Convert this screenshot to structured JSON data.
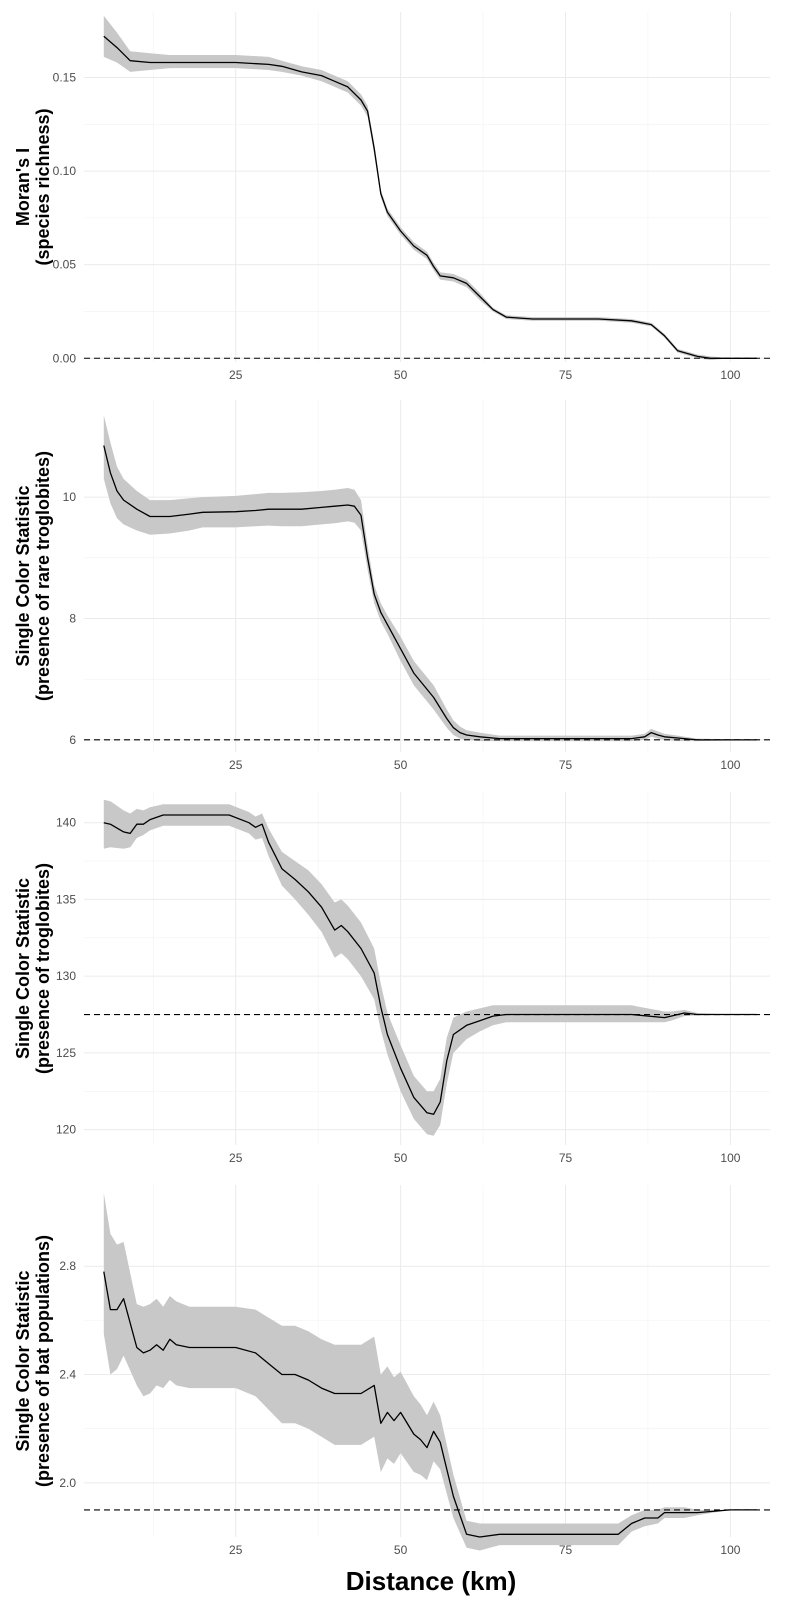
{
  "xlabel": "Distance (km)",
  "chart_data": [
    {
      "type": "line",
      "ylabel": [
        "Moran's I",
        "(species richness)"
      ],
      "xlim": [
        2,
        106
      ],
      "ylim": [
        -0.002,
        0.185
      ],
      "xticks": [
        25,
        50,
        75,
        100
      ],
      "yticks": [
        0.0,
        0.05,
        0.1,
        0.15
      ],
      "ytick_labels": [
        "0.00",
        "0.05",
        "0.10",
        "0.15"
      ],
      "reference_y": 0,
      "x": [
        5,
        7,
        9,
        12,
        15,
        20,
        25,
        30,
        32,
        35,
        38,
        40,
        42,
        44,
        45,
        46,
        47,
        48,
        50,
        52,
        54,
        55,
        56,
        58,
        60,
        62,
        64,
        66,
        70,
        75,
        80,
        85,
        88,
        90,
        92,
        95,
        97,
        100,
        104
      ],
      "y": [
        0.172,
        0.166,
        0.159,
        0.158,
        0.158,
        0.158,
        0.158,
        0.157,
        0.156,
        0.153,
        0.151,
        0.148,
        0.145,
        0.138,
        0.132,
        0.112,
        0.088,
        0.078,
        0.068,
        0.06,
        0.055,
        0.049,
        0.044,
        0.043,
        0.04,
        0.033,
        0.026,
        0.022,
        0.021,
        0.021,
        0.021,
        0.02,
        0.018,
        0.012,
        0.004,
        0.001,
        0.0,
        0.0,
        0.0
      ],
      "lower": [
        0.161,
        0.158,
        0.153,
        0.154,
        0.155,
        0.155,
        0.155,
        0.154,
        0.153,
        0.151,
        0.148,
        0.145,
        0.142,
        0.135,
        0.129,
        0.109,
        0.086,
        0.076,
        0.066,
        0.058,
        0.053,
        0.047,
        0.042,
        0.041,
        0.038,
        0.031,
        0.025,
        0.021,
        0.02,
        0.02,
        0.02,
        0.019,
        0.017,
        0.011,
        0.003,
        0.0,
        -0.001,
        0.0,
        0.0
      ],
      "upper": [
        0.183,
        0.174,
        0.164,
        0.163,
        0.162,
        0.162,
        0.162,
        0.161,
        0.159,
        0.156,
        0.154,
        0.151,
        0.148,
        0.141,
        0.135,
        0.115,
        0.09,
        0.08,
        0.07,
        0.062,
        0.057,
        0.051,
        0.046,
        0.045,
        0.042,
        0.035,
        0.027,
        0.023,
        0.022,
        0.022,
        0.022,
        0.021,
        0.019,
        0.013,
        0.005,
        0.002,
        0.001,
        0.0,
        0.0
      ]
    },
    {
      "type": "line",
      "ylabel": [
        "Single Color Statistic",
        "(presence of rare troglobites)"
      ],
      "xlim": [
        2,
        106
      ],
      "ylim": [
        5.8,
        11.6
      ],
      "xticks": [
        25,
        50,
        75,
        100
      ],
      "yticks": [
        6,
        8,
        10
      ],
      "ytick_labels": [
        "6",
        "8",
        "10"
      ],
      "reference_y": 6,
      "x": [
        5,
        6,
        7,
        8,
        10,
        12,
        15,
        18,
        20,
        25,
        28,
        30,
        32,
        35,
        38,
        40,
        42,
        43,
        44,
        45,
        46,
        47,
        48,
        50,
        52,
        55,
        57,
        58,
        59,
        60,
        62,
        65,
        70,
        75,
        80,
        85,
        87,
        88,
        89,
        90,
        92,
        95,
        100,
        104
      ],
      "y": [
        10.85,
        10.4,
        10.1,
        9.95,
        9.8,
        9.68,
        9.68,
        9.72,
        9.75,
        9.76,
        9.78,
        9.8,
        9.8,
        9.8,
        9.83,
        9.85,
        9.87,
        9.85,
        9.7,
        9.0,
        8.4,
        8.1,
        7.9,
        7.5,
        7.1,
        6.7,
        6.35,
        6.2,
        6.12,
        6.08,
        6.05,
        6.02,
        6.02,
        6.02,
        6.02,
        6.02,
        6.05,
        6.12,
        6.08,
        6.05,
        6.03,
        6.0,
        6.0,
        6.0
      ],
      "lower": [
        10.3,
        9.9,
        9.65,
        9.55,
        9.45,
        9.38,
        9.4,
        9.45,
        9.5,
        9.5,
        9.52,
        9.53,
        9.52,
        9.52,
        9.55,
        9.57,
        9.6,
        9.58,
        9.45,
        8.8,
        8.25,
        7.95,
        7.75,
        7.3,
        6.9,
        6.5,
        6.2,
        6.08,
        6.02,
        6.0,
        5.98,
        5.98,
        5.98,
        5.98,
        5.98,
        5.98,
        6.0,
        6.05,
        6.02,
        6.0,
        5.98,
        5.98,
        5.99,
        6.0
      ],
      "upper": [
        11.35,
        10.9,
        10.5,
        10.3,
        10.1,
        9.95,
        9.95,
        9.98,
        10.0,
        10.02,
        10.05,
        10.07,
        10.07,
        10.08,
        10.1,
        10.12,
        10.15,
        10.12,
        9.95,
        9.2,
        8.55,
        8.25,
        8.05,
        7.7,
        7.3,
        6.9,
        6.5,
        6.32,
        6.22,
        6.16,
        6.12,
        6.07,
        6.07,
        6.07,
        6.07,
        6.07,
        6.1,
        6.18,
        6.14,
        6.1,
        6.07,
        6.02,
        6.01,
        6.0
      ]
    },
    {
      "type": "line",
      "ylabel": [
        "Single Color Statistic",
        "(presence of troglobites)"
      ],
      "xlim": [
        2,
        106
      ],
      "ylim": [
        119,
        142
      ],
      "xticks": [
        25,
        50,
        75,
        100
      ],
      "yticks": [
        120,
        125,
        130,
        135,
        140
      ],
      "ytick_labels": [
        "120",
        "125",
        "130",
        "135",
        "140"
      ],
      "reference_y": 127.5,
      "x": [
        5,
        6,
        8,
        9,
        10,
        11,
        12,
        14,
        16,
        18,
        20,
        24,
        27,
        28,
        29,
        30,
        32,
        34,
        36,
        38,
        40,
        41,
        42,
        44,
        46,
        47,
        48,
        50,
        52,
        54,
        55,
        56,
        57,
        58,
        60,
        62,
        64,
        66,
        70,
        75,
        80,
        85,
        90,
        91,
        93,
        95,
        100,
        104
      ],
      "y": [
        140.0,
        139.9,
        139.4,
        139.3,
        139.9,
        139.9,
        140.2,
        140.5,
        140.5,
        140.5,
        140.5,
        140.5,
        140.0,
        139.7,
        139.9,
        138.7,
        137.0,
        136.3,
        135.5,
        134.5,
        133.0,
        133.3,
        132.9,
        131.8,
        130.2,
        128.0,
        126.2,
        124.0,
        122.1,
        121.1,
        121.0,
        121.8,
        124.5,
        126.2,
        126.8,
        127.1,
        127.4,
        127.5,
        127.5,
        127.5,
        127.5,
        127.5,
        127.3,
        127.4,
        127.6,
        127.5,
        127.5,
        127.5
      ],
      "lower": [
        138.3,
        138.4,
        138.3,
        138.4,
        139.0,
        139.2,
        139.5,
        139.8,
        139.8,
        139.8,
        139.8,
        139.8,
        139.3,
        138.9,
        139.0,
        137.8,
        135.9,
        135.0,
        134.0,
        132.9,
        131.2,
        131.5,
        131.1,
        130.0,
        128.5,
        126.5,
        124.9,
        122.5,
        120.7,
        119.7,
        119.6,
        120.3,
        123.0,
        125.0,
        125.9,
        126.4,
        126.8,
        127.0,
        127.0,
        127.0,
        127.0,
        127.0,
        127.0,
        127.1,
        127.4,
        127.45,
        127.5,
        127.5
      ],
      "upper": [
        141.5,
        141.4,
        140.8,
        140.6,
        140.9,
        140.8,
        141.0,
        141.2,
        141.2,
        141.2,
        141.2,
        141.2,
        140.7,
        140.4,
        140.6,
        139.6,
        138.1,
        137.5,
        136.9,
        136.0,
        134.8,
        135.0,
        134.6,
        133.5,
        131.8,
        129.5,
        127.6,
        125.5,
        123.5,
        122.5,
        122.5,
        123.3,
        126.0,
        127.3,
        127.7,
        127.9,
        128.1,
        128.1,
        128.1,
        128.1,
        128.1,
        128.1,
        127.7,
        127.7,
        127.8,
        127.6,
        127.5,
        127.5
      ]
    },
    {
      "type": "line",
      "ylabel": [
        "Single Color Statistic",
        "(presence of bat populations)"
      ],
      "xlim": [
        2,
        106
      ],
      "ylim": [
        1.8,
        3.1
      ],
      "xticks": [
        25,
        50,
        75,
        100
      ],
      "yticks": [
        2.0,
        2.4,
        2.8
      ],
      "ytick_labels": [
        "2.0",
        "2.4",
        "2.8"
      ],
      "reference_y": 1.9,
      "x": [
        5,
        6,
        7,
        8,
        10,
        11,
        12,
        13,
        14,
        15,
        16,
        18,
        20,
        25,
        28,
        30,
        32,
        34,
        36,
        38,
        40,
        42,
        44,
        46,
        47,
        48,
        49,
        50,
        52,
        53,
        54,
        55,
        56,
        58,
        60,
        62,
        65,
        70,
        75,
        80,
        83,
        85,
        87,
        89,
        90,
        92,
        93,
        95,
        100,
        104
      ],
      "y": [
        2.78,
        2.64,
        2.64,
        2.68,
        2.5,
        2.48,
        2.49,
        2.51,
        2.49,
        2.53,
        2.51,
        2.5,
        2.5,
        2.5,
        2.48,
        2.44,
        2.4,
        2.4,
        2.38,
        2.35,
        2.33,
        2.33,
        2.33,
        2.36,
        2.22,
        2.26,
        2.23,
        2.26,
        2.18,
        2.16,
        2.13,
        2.19,
        2.15,
        1.95,
        1.81,
        1.8,
        1.81,
        1.81,
        1.81,
        1.81,
        1.81,
        1.85,
        1.87,
        1.87,
        1.89,
        1.89,
        1.89,
        1.89,
        1.9,
        1.9
      ],
      "lower": [
        2.55,
        2.4,
        2.42,
        2.47,
        2.36,
        2.32,
        2.33,
        2.36,
        2.35,
        2.38,
        2.36,
        2.35,
        2.35,
        2.35,
        2.32,
        2.27,
        2.22,
        2.22,
        2.2,
        2.17,
        2.14,
        2.14,
        2.14,
        2.17,
        2.04,
        2.09,
        2.07,
        2.11,
        2.04,
        2.03,
        2.01,
        2.08,
        2.05,
        1.87,
        1.76,
        1.75,
        1.77,
        1.77,
        1.77,
        1.77,
        1.77,
        1.82,
        1.84,
        1.85,
        1.87,
        1.87,
        1.87,
        1.88,
        1.9,
        1.9
      ],
      "upper": [
        3.07,
        2.92,
        2.88,
        2.89,
        2.66,
        2.65,
        2.66,
        2.68,
        2.65,
        2.69,
        2.67,
        2.65,
        2.65,
        2.65,
        2.64,
        2.61,
        2.58,
        2.58,
        2.56,
        2.53,
        2.51,
        2.51,
        2.51,
        2.54,
        2.4,
        2.43,
        2.39,
        2.41,
        2.32,
        2.29,
        2.25,
        2.3,
        2.25,
        2.03,
        1.86,
        1.85,
        1.85,
        1.85,
        1.85,
        1.85,
        1.85,
        1.88,
        1.9,
        1.9,
        1.91,
        1.91,
        1.91,
        1.9,
        1.9,
        1.9
      ]
    }
  ]
}
